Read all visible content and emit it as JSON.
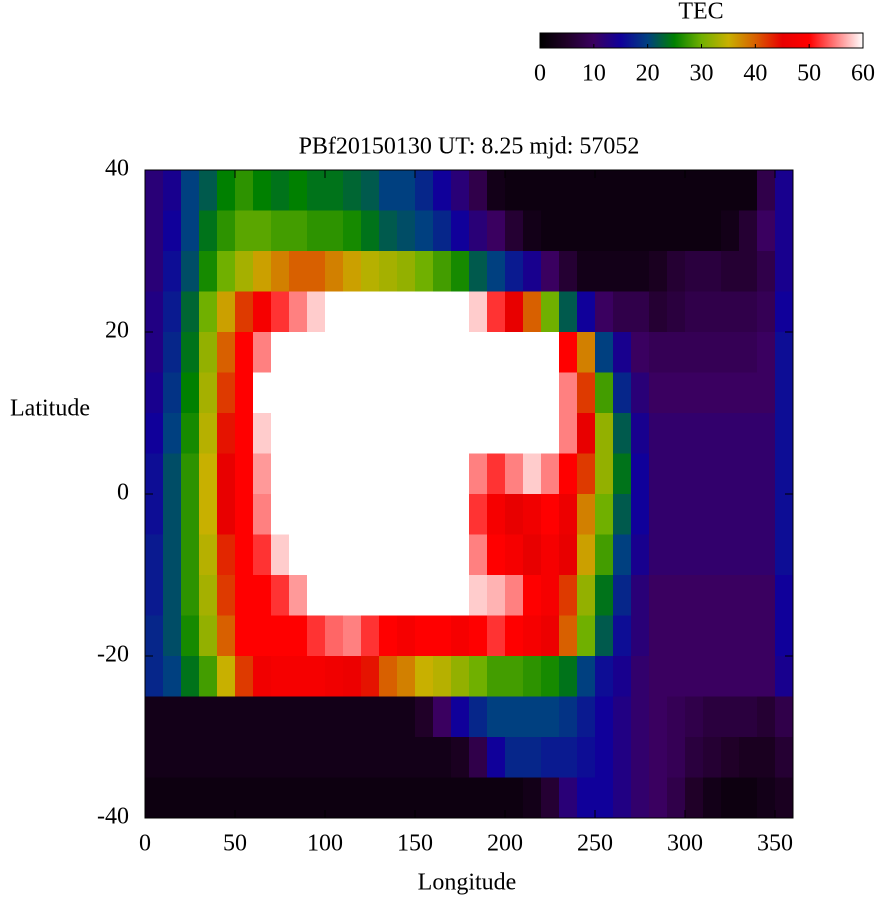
{
  "chart_data": {
    "type": "heatmap",
    "title": "PBf20150130  UT: 8.25  mjd: 57052",
    "x_label": "Longitude",
    "y_label": "Latitude",
    "x": [
      5,
      15,
      25,
      35,
      45,
      55,
      65,
      75,
      85,
      95,
      105,
      115,
      125,
      135,
      145,
      155,
      165,
      175,
      185,
      195,
      205,
      215,
      225,
      235,
      245,
      255,
      265,
      275,
      285,
      295,
      305,
      315,
      325,
      335,
      345,
      355
    ],
    "y": [
      37.5,
      32.5,
      27.5,
      22.5,
      17.5,
      12.5,
      7.5,
      2.5,
      -2.5,
      -7.5,
      -12.5,
      -17.5,
      -22.5,
      -27.5,
      -32.5,
      -37.5
    ],
    "values": [
      [
        12,
        14,
        20,
        22,
        25,
        27,
        25,
        24,
        25,
        24,
        24,
        23,
        22,
        20,
        20,
        18,
        15,
        12,
        8,
        3,
        2,
        2,
        2,
        2,
        2,
        2,
        2,
        2,
        2,
        2,
        2,
        2,
        2,
        2,
        8,
        14
      ],
      [
        12,
        15,
        20,
        24,
        27,
        29,
        29,
        28,
        28,
        27,
        27,
        26,
        24,
        22,
        21,
        20,
        18,
        15,
        12,
        10,
        6,
        3,
        2,
        2,
        2,
        2,
        2,
        2,
        2,
        2,
        2,
        2,
        3,
        6,
        10,
        14
      ],
      [
        12,
        16,
        21,
        26,
        30,
        33,
        36,
        38,
        40,
        40,
        38,
        36,
        34,
        33,
        32,
        30,
        28,
        26,
        22,
        20,
        17,
        14,
        10,
        6,
        3,
        3,
        3,
        3,
        4,
        6,
        7,
        7,
        6,
        6,
        8,
        14
      ],
      [
        13,
        17,
        23,
        30,
        36,
        42,
        48,
        52,
        55,
        58,
        60,
        60,
        60,
        60,
        60,
        60,
        60,
        60,
        58,
        52,
        45,
        40,
        30,
        22,
        15,
        10,
        8,
        8,
        6,
        7,
        8,
        8,
        8,
        8,
        9,
        15
      ],
      [
        13,
        18,
        24,
        32,
        40,
        50,
        55,
        60,
        60,
        60,
        60,
        60,
        60,
        60,
        60,
        60,
        60,
        60,
        60,
        60,
        60,
        60,
        60,
        50,
        38,
        20,
        14,
        10,
        9,
        9,
        9,
        9,
        9,
        9,
        10,
        16
      ],
      [
        14,
        19,
        25,
        33,
        42,
        50,
        60,
        60,
        60,
        60,
        60,
        60,
        60,
        60,
        60,
        60,
        60,
        60,
        60,
        60,
        60,
        60,
        60,
        55,
        42,
        28,
        18,
        12,
        10,
        10,
        10,
        10,
        10,
        10,
        10,
        16
      ],
      [
        15,
        20,
        26,
        34,
        44,
        50,
        58,
        60,
        60,
        60,
        60,
        60,
        60,
        60,
        60,
        60,
        60,
        60,
        60,
        60,
        60,
        60,
        60,
        55,
        45,
        32,
        22,
        14,
        11,
        11,
        11,
        11,
        11,
        11,
        11,
        16
      ],
      [
        16,
        21,
        27,
        35,
        45,
        50,
        56,
        60,
        60,
        60,
        60,
        60,
        60,
        60,
        60,
        60,
        60,
        60,
        55,
        52,
        55,
        58,
        55,
        50,
        42,
        32,
        24,
        15,
        11,
        11,
        11,
        11,
        11,
        11,
        11,
        16
      ],
      [
        16,
        21,
        27,
        35,
        45,
        50,
        55,
        60,
        60,
        60,
        60,
        60,
        60,
        60,
        60,
        60,
        60,
        60,
        52,
        48,
        45,
        47,
        50,
        46,
        38,
        30,
        22,
        15,
        11,
        11,
        11,
        11,
        11,
        11,
        11,
        16
      ],
      [
        17,
        21,
        27,
        34,
        43,
        50,
        52,
        58,
        60,
        60,
        60,
        60,
        60,
        60,
        60,
        60,
        60,
        60,
        55,
        50,
        48,
        45,
        48,
        45,
        36,
        28,
        20,
        14,
        11,
        11,
        11,
        11,
        11,
        11,
        11,
        16
      ],
      [
        17,
        21,
        27,
        33,
        42,
        50,
        50,
        52,
        56,
        60,
        60,
        60,
        60,
        60,
        60,
        60,
        60,
        60,
        58,
        57,
        55,
        50,
        48,
        42,
        32,
        24,
        18,
        12,
        10,
        10,
        10,
        10,
        10,
        10,
        10,
        15
      ],
      [
        18,
        21,
        26,
        32,
        40,
        50,
        50,
        50,
        50,
        52,
        54,
        55,
        52,
        50,
        48,
        50,
        50,
        48,
        50,
        52,
        50,
        48,
        46,
        40,
        30,
        22,
        16,
        12,
        10,
        10,
        10,
        10,
        10,
        10,
        10,
        15
      ],
      [
        18,
        20,
        24,
        28,
        35,
        42,
        47,
        48,
        48,
        48,
        47,
        46,
        44,
        40,
        38,
        35,
        34,
        32,
        30,
        28,
        28,
        27,
        26,
        24,
        20,
        16,
        14,
        11,
        10,
        10,
        10,
        10,
        10,
        10,
        10,
        14
      ],
      [
        3,
        3,
        3,
        3,
        3,
        3,
        3,
        3,
        3,
        3,
        3,
        3,
        3,
        3,
        3,
        5,
        10,
        15,
        18,
        20,
        20,
        20,
        20,
        19,
        17,
        15,
        13,
        11,
        10,
        9,
        8,
        7,
        7,
        7,
        6,
        8
      ],
      [
        3,
        3,
        3,
        3,
        3,
        3,
        3,
        3,
        3,
        3,
        3,
        3,
        3,
        3,
        3,
        3,
        3,
        4,
        8,
        15,
        18,
        18,
        17,
        17,
        16,
        15,
        13,
        11,
        10,
        9,
        7,
        6,
        5,
        4,
        4,
        6
      ],
      [
        2,
        2,
        2,
        2,
        2,
        2,
        2,
        2,
        2,
        2,
        2,
        2,
        2,
        2,
        2,
        2,
        2,
        2,
        2,
        2,
        2,
        3,
        6,
        12,
        15,
        15,
        13,
        11,
        10,
        8,
        5,
        3,
        2,
        2,
        3,
        4
      ]
    ],
    "xlim": [
      0,
      360
    ],
    "ylim": [
      -40,
      40
    ],
    "xticks": [
      0,
      50,
      100,
      150,
      200,
      250,
      300,
      350
    ],
    "yticks": [
      -40,
      -20,
      0,
      20,
      40
    ],
    "colorbar": {
      "label": "TEC",
      "lim": [
        0,
        60
      ],
      "ticks": [
        0,
        10,
        20,
        30,
        40,
        50,
        60
      ],
      "colors": [
        "#000000",
        "#200028",
        "#3a0060",
        "#10009a",
        "#004080",
        "#008000",
        "#70b000",
        "#c8b000",
        "#d86000",
        "#e80000",
        "#ff0000",
        "#ff8080",
        "#ffffff"
      ]
    }
  }
}
